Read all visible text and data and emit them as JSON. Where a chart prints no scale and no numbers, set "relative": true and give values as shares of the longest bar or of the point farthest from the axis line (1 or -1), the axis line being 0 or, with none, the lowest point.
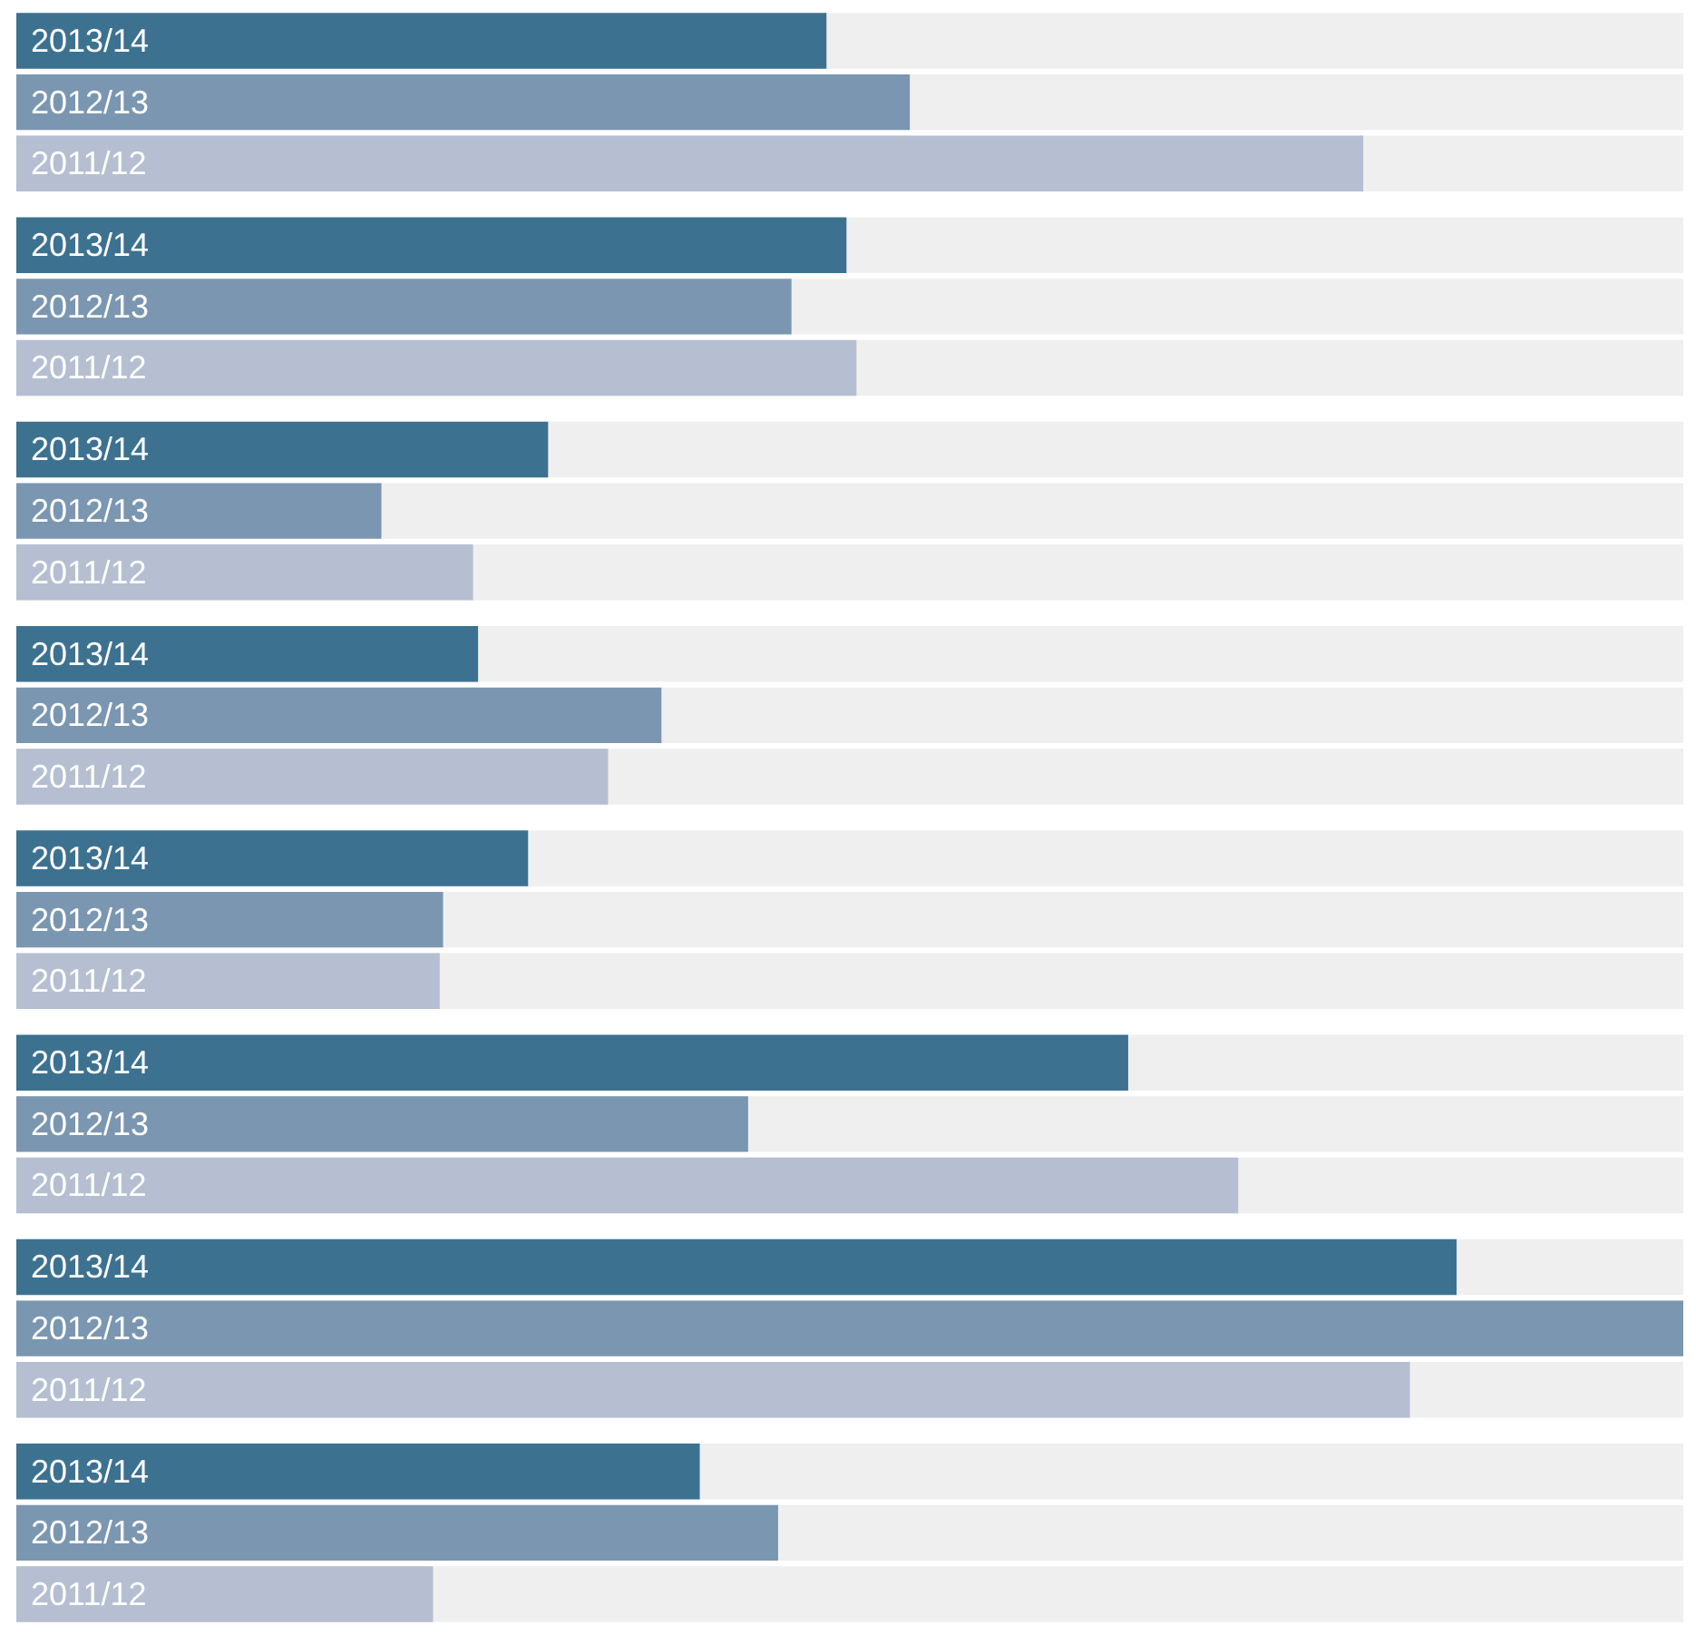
{
  "chart_data": {
    "type": "bar",
    "orientation": "horizontal",
    "relative": true,
    "legend": false,
    "categories": [
      null,
      null,
      null,
      null,
      null,
      null,
      null,
      null
    ],
    "series": [
      {
        "name": "2013/14",
        "color": "#3d7190",
        "values": [
          0.486,
          0.498,
          0.319,
          0.277,
          0.307,
          0.667,
          0.864,
          0.41
        ]
      },
      {
        "name": "2012/13",
        "color": "#7b96b0",
        "values": [
          0.536,
          0.465,
          0.219,
          0.387,
          0.256,
          0.439,
          1,
          0.457
        ]
      },
      {
        "name": "2011/12",
        "color": "#b5bfd1",
        "values": [
          0.808,
          0.504,
          0.274,
          0.355,
          0.254,
          0.733,
          0.836,
          0.25
        ]
      }
    ]
  }
}
